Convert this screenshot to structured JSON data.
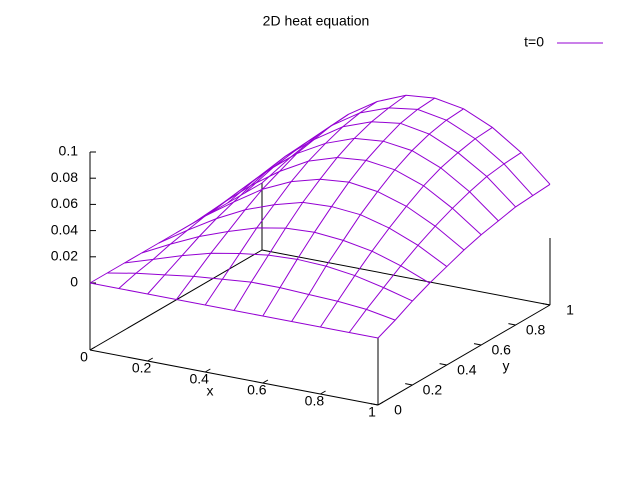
{
  "chart_data": {
    "type": "surface",
    "title": "2D heat equation",
    "x_label": "x",
    "y_label": "y",
    "x": [
      0,
      0.1,
      0.2,
      0.3,
      0.4,
      0.5,
      0.6,
      0.7,
      0.8,
      0.9,
      1
    ],
    "y": [
      0,
      0.1,
      0.2,
      0.3,
      0.4,
      0.5,
      0.6,
      0.7,
      0.8,
      0.9,
      1
    ],
    "series": [
      {
        "name": "t=0",
        "color": "#9400d3",
        "z": [
          [
            0,
            0,
            0,
            0,
            0,
            0,
            0,
            0,
            0,
            0,
            0
          ],
          [
            0,
            0.004,
            0.007,
            0.01,
            0.012,
            0.014,
            0.014,
            0.013,
            0.012,
            0.01,
            0.006
          ],
          [
            0,
            0.007,
            0.014,
            0.02,
            0.024,
            0.027,
            0.028,
            0.027,
            0.024,
            0.019,
            0.013
          ],
          [
            0,
            0.011,
            0.021,
            0.029,
            0.036,
            0.04,
            0.041,
            0.039,
            0.035,
            0.028,
            0.019
          ],
          [
            0,
            0.014,
            0.027,
            0.038,
            0.046,
            0.052,
            0.053,
            0.051,
            0.045,
            0.036,
            0.024
          ],
          [
            0,
            0.017,
            0.032,
            0.046,
            0.056,
            0.062,
            0.064,
            0.061,
            0.054,
            0.043,
            0.029
          ],
          [
            0,
            0.019,
            0.037,
            0.052,
            0.064,
            0.071,
            0.073,
            0.07,
            0.062,
            0.049,
            0.033
          ],
          [
            0,
            0.021,
            0.041,
            0.058,
            0.07,
            0.078,
            0.08,
            0.077,
            0.068,
            0.054,
            0.036
          ],
          [
            0,
            0.023,
            0.044,
            0.061,
            0.075,
            0.083,
            0.086,
            0.082,
            0.072,
            0.058,
            0.039
          ],
          [
            0,
            0.024,
            0.045,
            0.064,
            0.078,
            0.086,
            0.089,
            0.085,
            0.075,
            0.06,
            0.04
          ],
          [
            0,
            0.024,
            0.046,
            0.065,
            0.079,
            0.088,
            0.09,
            0.086,
            0.076,
            0.061,
            0.041
          ]
        ]
      }
    ],
    "xlim": [
      0,
      1
    ],
    "ylim": [
      0,
      1
    ],
    "zlim": [
      0,
      0.1
    ],
    "xticks": [
      0,
      0.2,
      0.4,
      0.6,
      0.8,
      1
    ],
    "yticks": [
      0,
      0.2,
      0.4,
      0.6,
      0.8,
      1
    ],
    "zticks": [
      0,
      0.02,
      0.04,
      0.06,
      0.08,
      0.1
    ]
  }
}
